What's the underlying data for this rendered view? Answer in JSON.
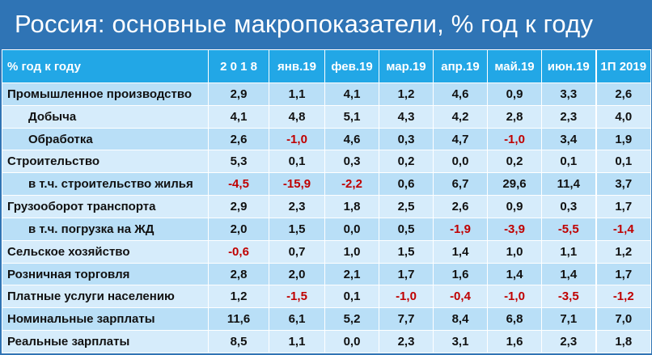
{
  "title": "Россия: основные макропоказатели, % год к году",
  "table": {
    "label_header": "% год к году",
    "columns": [
      "2 0 1 8",
      "янв.19",
      "фев.19",
      "мар.19",
      "апр.19",
      "май.19",
      "июн.19",
      "1П 2019"
    ],
    "rows": [
      {
        "label": "Промышленное производство",
        "indent": false,
        "values": [
          "2,9",
          "1,1",
          "4,1",
          "1,2",
          "4,6",
          "0,9",
          "3,3",
          "2,6"
        ]
      },
      {
        "label": "Добыча",
        "indent": true,
        "values": [
          "4,1",
          "4,8",
          "5,1",
          "4,3",
          "4,2",
          "2,8",
          "2,3",
          "4,0"
        ]
      },
      {
        "label": "Обработка",
        "indent": true,
        "values": [
          "2,6",
          "-1,0",
          "4,6",
          "0,3",
          "4,7",
          "-1,0",
          "3,4",
          "1,9"
        ]
      },
      {
        "label": "Строительство",
        "indent": false,
        "values": [
          "5,3",
          "0,1",
          "0,3",
          "0,2",
          "0,0",
          "0,2",
          "0,1",
          "0,1"
        ]
      },
      {
        "label": "в т.ч. строительство жилья",
        "indent": true,
        "values": [
          "-4,5",
          "-15,9",
          "-2,2",
          "0,6",
          "6,7",
          "29,6",
          "11,4",
          "3,7"
        ]
      },
      {
        "label": "Грузооборот транспорта",
        "indent": false,
        "values": [
          "2,9",
          "2,3",
          "1,8",
          "2,5",
          "2,6",
          "0,9",
          "0,3",
          "1,7"
        ]
      },
      {
        "label": "в т.ч. погрузка на ЖД",
        "indent": true,
        "values": [
          "2,0",
          "1,5",
          "0,0",
          "0,5",
          "-1,9",
          "-3,9",
          "-5,5",
          "-1,4"
        ]
      },
      {
        "label": "Сельское хозяйство",
        "indent": false,
        "values": [
          "-0,6",
          "0,7",
          "1,0",
          "1,5",
          "1,4",
          "1,0",
          "1,1",
          "1,2"
        ]
      },
      {
        "label": "Розничная торговля",
        "indent": false,
        "values": [
          "2,8",
          "2,0",
          "2,1",
          "1,7",
          "1,6",
          "1,4",
          "1,4",
          "1,7"
        ]
      },
      {
        "label": "Платные услуги населению",
        "indent": false,
        "values": [
          "1,2",
          "-1,5",
          "0,1",
          "-1,0",
          "-0,4",
          "-1,0",
          "-3,5",
          "-1,2"
        ]
      },
      {
        "label": "Номинальные зарплаты",
        "indent": false,
        "values": [
          "11,6",
          "6,1",
          "5,2",
          "7,7",
          "8,4",
          "6,8",
          "7,1",
          "7,0"
        ]
      },
      {
        "label": "Реальные зарплаты",
        "indent": false,
        "values": [
          "8,5",
          "1,1",
          "0,0",
          "2,3",
          "3,1",
          "1,6",
          "2,3",
          "1,8"
        ]
      }
    ]
  },
  "colors": {
    "background": "#2f74b5",
    "header": "#22a7e6",
    "row_dark": "#b9dff7",
    "row_light": "#d6ecfb",
    "negative": "#c00000"
  }
}
